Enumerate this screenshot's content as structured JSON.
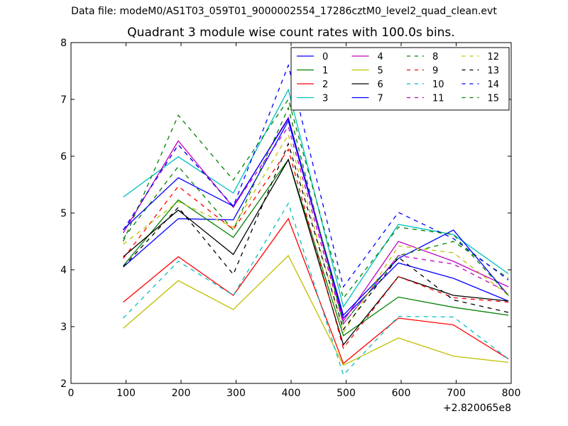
{
  "header": {
    "suptitle": "Data file: modeM0/AS1T03_059T01_9000002554_17286cztM0_level2_quad_clean.evt"
  },
  "chart_data": {
    "type": "line",
    "title": "Quadrant 3 module wise count rates with 100.0s bins.",
    "xlabel": "",
    "ylabel": "",
    "x_offset_label": "+2.820065e8",
    "xlim": [
      0,
      800
    ],
    "ylim": [
      2,
      8
    ],
    "xticks": [
      0,
      100,
      200,
      300,
      400,
      500,
      600,
      700,
      800
    ],
    "yticks": [
      2,
      3,
      4,
      5,
      6,
      7,
      8
    ],
    "grid": false,
    "legend_position": "top-right",
    "x": [
      95,
      195,
      295,
      395,
      495,
      595,
      695,
      795
    ],
    "series": [
      {
        "name": "0",
        "color": "#0000ff",
        "dash": "solid",
        "values": [
          4.05,
          4.9,
          4.88,
          6.62,
          3.15,
          4.12,
          3.85,
          3.45
        ]
      },
      {
        "name": "1",
        "color": "#008000",
        "dash": "solid",
        "values": [
          4.07,
          5.23,
          4.57,
          5.94,
          2.84,
          3.52,
          3.34,
          3.2
        ]
      },
      {
        "name": "2",
        "color": "#ff0000",
        "dash": "solid",
        "values": [
          3.43,
          4.23,
          3.55,
          4.9,
          2.35,
          3.15,
          3.03,
          2.43
        ]
      },
      {
        "name": "3",
        "color": "#00bfbf",
        "dash": "solid",
        "values": [
          5.28,
          5.99,
          5.35,
          7.17,
          3.35,
          4.8,
          4.62,
          3.93
        ]
      },
      {
        "name": "4",
        "color": "#bf00bf",
        "dash": "solid",
        "values": [
          4.65,
          6.27,
          5.1,
          6.68,
          3.1,
          4.5,
          4.15,
          3.7
        ]
      },
      {
        "name": "5",
        "color": "#bfbf00",
        "dash": "solid",
        "values": [
          2.97,
          3.81,
          3.3,
          4.25,
          2.32,
          2.8,
          2.48,
          2.37
        ]
      },
      {
        "name": "6",
        "color": "#000000",
        "dash": "solid",
        "values": [
          4.23,
          5.05,
          4.27,
          5.94,
          2.68,
          3.88,
          3.55,
          3.45
        ]
      },
      {
        "name": "7",
        "color": "#0000ff",
        "dash": "solid",
        "values": [
          4.71,
          5.62,
          5.12,
          6.66,
          3.2,
          4.2,
          4.7,
          3.55
        ]
      },
      {
        "name": "8",
        "color": "#008000",
        "dash": "dashed",
        "values": [
          4.55,
          5.82,
          4.7,
          6.85,
          3.05,
          4.25,
          4.5,
          3.85
        ]
      },
      {
        "name": "9",
        "color": "#ff0000",
        "dash": "dashed",
        "values": [
          4.2,
          5.47,
          4.71,
          6.12,
          2.62,
          3.88,
          3.51,
          3.43
        ]
      },
      {
        "name": "10",
        "color": "#00bfbf",
        "dash": "dashed",
        "values": [
          3.15,
          4.15,
          3.55,
          5.17,
          2.15,
          3.18,
          3.17,
          2.43
        ]
      },
      {
        "name": "11",
        "color": "#bf00bf",
        "dash": "dashed",
        "values": [
          4.7,
          6.2,
          5.12,
          6.52,
          3.05,
          4.25,
          4.1,
          3.6
        ]
      },
      {
        "name": "12",
        "color": "#bfbf00",
        "dash": "dashed",
        "values": [
          4.45,
          5.2,
          4.75,
          6.38,
          2.9,
          4.42,
          4.3,
          3.55
        ]
      },
      {
        "name": "13",
        "color": "#000000",
        "dash": "dashed",
        "values": [
          4.05,
          5.1,
          3.92,
          6.22,
          2.95,
          4.22,
          3.47,
          3.25
        ]
      },
      {
        "name": "14",
        "color": "#0000ff",
        "dash": "dashed",
        "values": [
          4.7,
          6.2,
          5.12,
          7.6,
          3.7,
          5.01,
          4.55,
          3.82
        ]
      },
      {
        "name": "15",
        "color": "#008000",
        "dash": "dashed",
        "values": [
          4.5,
          6.72,
          5.58,
          7.0,
          3.5,
          4.75,
          4.62,
          3.55
        ]
      }
    ]
  }
}
